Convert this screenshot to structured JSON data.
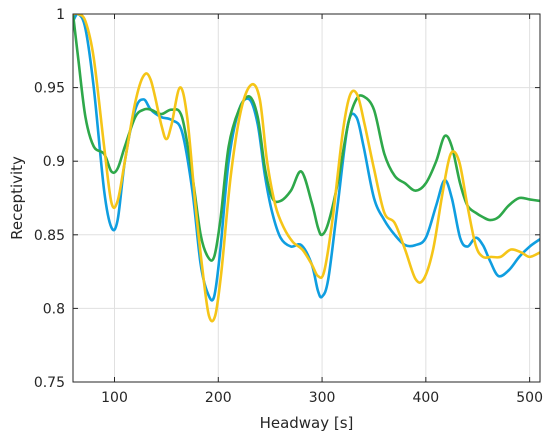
{
  "chart_data": {
    "type": "line",
    "title": "",
    "xlabel": "Headway [s]",
    "ylabel": "Receptivity",
    "xlim": [
      60,
      510
    ],
    "ylim": [
      0.75,
      1.0
    ],
    "x_ticks": [
      100,
      200,
      300,
      400,
      500
    ],
    "x_tick_labels": [
      "100",
      "200",
      "300",
      "400",
      "500"
    ],
    "y_ticks": [
      0.75,
      0.8,
      0.85,
      0.9,
      0.95,
      1.0
    ],
    "y_tick_labels": [
      "0.75",
      "0.8",
      "0.85",
      "0.9",
      "0.95",
      "1"
    ],
    "grid": true,
    "series": [
      {
        "color": "#0f9ee0",
        "x": [
          60,
          65,
          72,
          80,
          90,
          97,
          103,
          110,
          120,
          128,
          135,
          145,
          155,
          165,
          175,
          183,
          190,
          196,
          202,
          210,
          220,
          230,
          238,
          245,
          252,
          260,
          270,
          280,
          290,
          296,
          300,
          306,
          315,
          325,
          333,
          340,
          350,
          360,
          370,
          380,
          390,
          400,
          410,
          418,
          425,
          433,
          440,
          448,
          455,
          462,
          470,
          480,
          490,
          500,
          510
        ],
        "y": [
          0.995,
          1.0,
          0.99,
          0.95,
          0.88,
          0.855,
          0.86,
          0.9,
          0.935,
          0.942,
          0.935,
          0.93,
          0.928,
          0.92,
          0.88,
          0.83,
          0.81,
          0.808,
          0.84,
          0.9,
          0.935,
          0.942,
          0.925,
          0.89,
          0.865,
          0.848,
          0.842,
          0.843,
          0.83,
          0.812,
          0.808,
          0.82,
          0.87,
          0.925,
          0.93,
          0.91,
          0.875,
          0.86,
          0.85,
          0.843,
          0.843,
          0.848,
          0.87,
          0.887,
          0.875,
          0.848,
          0.842,
          0.848,
          0.843,
          0.832,
          0.822,
          0.826,
          0.835,
          0.842,
          0.847
        ]
      },
      {
        "color": "#2ea84a",
        "x": [
          60,
          65,
          72,
          80,
          90,
          97,
          103,
          110,
          120,
          128,
          135,
          145,
          155,
          165,
          175,
          183,
          190,
          196,
          202,
          210,
          220,
          230,
          238,
          245,
          252,
          260,
          270,
          280,
          290,
          296,
          300,
          306,
          315,
          325,
          333,
          340,
          350,
          360,
          370,
          380,
          390,
          400,
          410,
          418,
          425,
          433,
          440,
          448,
          455,
          462,
          470,
          480,
          490,
          500,
          510
        ],
        "y": [
          1.0,
          0.97,
          0.93,
          0.91,
          0.905,
          0.893,
          0.895,
          0.91,
          0.93,
          0.935,
          0.935,
          0.932,
          0.935,
          0.93,
          0.89,
          0.85,
          0.835,
          0.835,
          0.86,
          0.91,
          0.935,
          0.944,
          0.93,
          0.895,
          0.875,
          0.873,
          0.88,
          0.893,
          0.872,
          0.855,
          0.85,
          0.858,
          0.885,
          0.925,
          0.942,
          0.944,
          0.935,
          0.905,
          0.89,
          0.885,
          0.88,
          0.885,
          0.9,
          0.917,
          0.91,
          0.885,
          0.87,
          0.865,
          0.862,
          0.86,
          0.862,
          0.87,
          0.875,
          0.874,
          0.873
        ]
      },
      {
        "color": "#f5c518",
        "x": [
          60,
          65,
          72,
          80,
          90,
          97,
          103,
          110,
          120,
          128,
          135,
          145,
          150,
          155,
          163,
          170,
          178,
          185,
          191,
          197,
          203,
          212,
          222,
          232,
          240,
          247,
          255,
          263,
          272,
          281,
          290,
          296,
          302,
          310,
          320,
          327,
          334,
          341,
          350,
          360,
          370,
          380,
          390,
          398,
          407,
          416,
          424,
          432,
          440,
          448,
          455,
          463,
          472,
          482,
          492,
          500,
          510
        ],
        "y": [
          1.0,
          1.0,
          0.995,
          0.97,
          0.91,
          0.872,
          0.873,
          0.9,
          0.94,
          0.958,
          0.955,
          0.925,
          0.915,
          0.925,
          0.95,
          0.93,
          0.87,
          0.825,
          0.795,
          0.795,
          0.825,
          0.89,
          0.935,
          0.952,
          0.942,
          0.9,
          0.87,
          0.855,
          0.845,
          0.84,
          0.83,
          0.822,
          0.825,
          0.86,
          0.92,
          0.945,
          0.945,
          0.925,
          0.895,
          0.865,
          0.858,
          0.84,
          0.82,
          0.82,
          0.84,
          0.878,
          0.905,
          0.9,
          0.87,
          0.843,
          0.835,
          0.835,
          0.835,
          0.84,
          0.838,
          0.835,
          0.838
        ]
      }
    ]
  }
}
